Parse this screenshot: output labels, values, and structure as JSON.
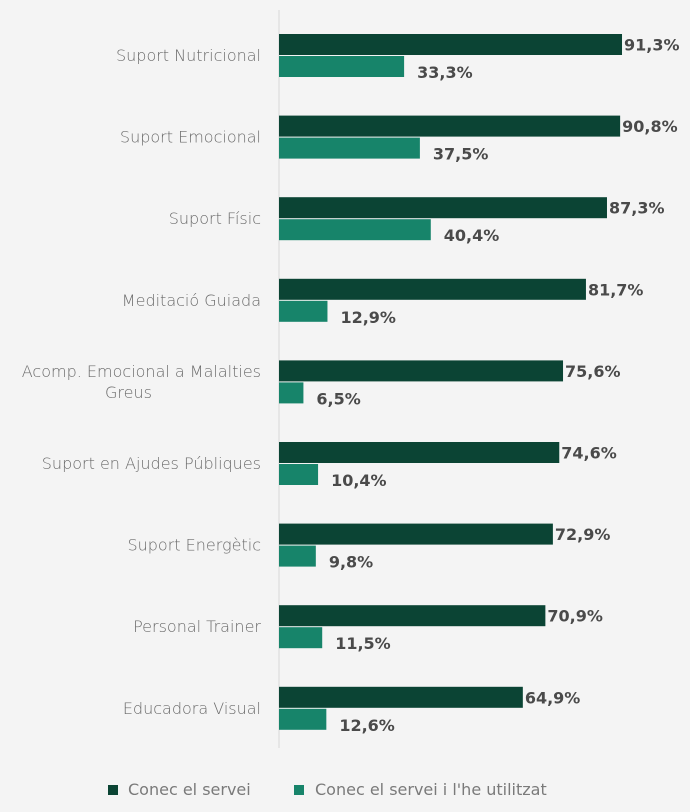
{
  "chart_data": {
    "type": "bar",
    "orientation": "horizontal",
    "categories": [
      [
        "Suport Nutricional"
      ],
      [
        "Suport Emocional"
      ],
      [
        "Suport Físic"
      ],
      [
        "Meditació Guiada"
      ],
      [
        "Acomp. Emocional a Malalties",
        "Greus"
      ],
      [
        "Suport en Ajudes Públiques"
      ],
      [
        "Suport Energètic"
      ],
      [
        "Personal Trainer"
      ],
      [
        "Educadora Visual"
      ]
    ],
    "series": [
      {
        "name": "Conec el servei",
        "color": "#0b4434",
        "values": [
          91.3,
          90.8,
          87.3,
          81.7,
          75.6,
          74.6,
          72.9,
          70.9,
          64.9
        ],
        "labels": [
          "91,3%",
          "90,8%",
          "87,3%",
          "81,7%",
          "75,6%",
          "74,6%",
          "72,9%",
          "70,9%",
          "64,9%"
        ]
      },
      {
        "name": "Conec el servei i l'he utilitzat",
        "color": "#17846a",
        "values": [
          33.3,
          37.5,
          40.4,
          12.9,
          6.5,
          10.4,
          9.8,
          11.5,
          12.6
        ],
        "labels": [
          "33,3%",
          "37,5%",
          "40,4%",
          "12,9%",
          "6,5%",
          "10,4%",
          "9,8%",
          "11,5%",
          "12,6%"
        ]
      }
    ],
    "xlim": [
      0,
      100
    ],
    "grid": false,
    "legend": "bottom"
  }
}
